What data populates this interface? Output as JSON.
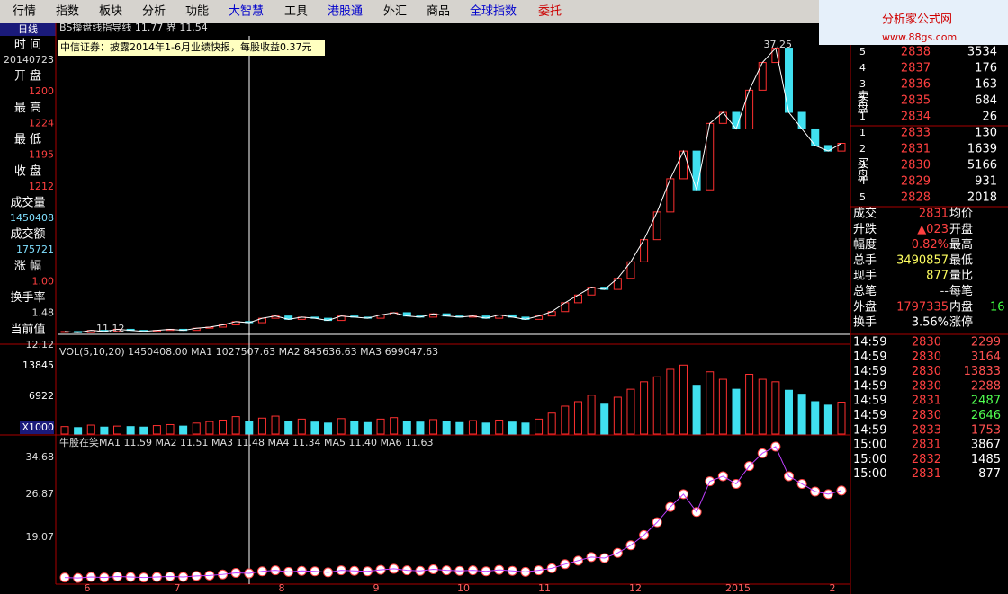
{
  "menu": [
    "行情",
    "指数",
    "板块",
    "分析",
    "功能",
    "大智慧",
    "工具",
    "港股通",
    "外汇",
    "商品",
    "全球指数",
    "委托"
  ],
  "brand": {
    "name": "分析家公式网",
    "url": "www.88gs.com"
  },
  "left": {
    "title": "日线",
    "fields": [
      {
        "label": "时 间",
        "value": "20140723"
      },
      {
        "label": "开 盘",
        "value": "1200"
      },
      {
        "label": "最 高",
        "value": "1224"
      },
      {
        "label": "最 低",
        "value": "1195"
      },
      {
        "label": "收 盘",
        "value": "1212"
      },
      {
        "label": "成交量",
        "value": "1450408"
      },
      {
        "label": "成交额",
        "value": "175721"
      },
      {
        "label": "涨 幅",
        "value": "1.00"
      },
      {
        "label": "换手率",
        "value": "1.48"
      },
      {
        "label": "当前值",
        "value": "12.12"
      }
    ],
    "axis_labels": [
      "13845",
      "6922",
      "X1000",
      "34.68",
      "26.87",
      "19.07"
    ]
  },
  "chart": {
    "header": "BS操盘线指导线 11.77 界 11.54",
    "notice": "中信证券：披露2014年1-6月业绩快报，每股收益0.37元",
    "high_label": "37.25",
    "low_label": "11.12",
    "vol_header": "VOL(5,10,20)  1450408.00  MA1 1027507.63  MA2 845636.63  MA3 699047.63",
    "ind_header": "牛股在笑MA1 11.59  MA2 11.51  MA3 11.48  MA4 11.34  MA5 11.40  MA6 11.63",
    "x_labels": [
      "6",
      "7",
      "8",
      "9",
      "10",
      "11",
      "12",
      "2015",
      "2"
    ],
    "closes": [
      11.2,
      11.1,
      11.3,
      11.2,
      11.4,
      11.3,
      11.2,
      11.3,
      11.4,
      11.3,
      11.5,
      11.6,
      11.8,
      12.1,
      12.0,
      12.4,
      12.6,
      12.3,
      12.5,
      12.4,
      12.2,
      12.6,
      12.5,
      12.4,
      12.7,
      12.9,
      12.6,
      12.5,
      12.8,
      12.6,
      12.5,
      12.6,
      12.4,
      12.7,
      12.5,
      12.3,
      12.6,
      13.0,
      13.8,
      14.5,
      15.2,
      15.0,
      16.0,
      17.5,
      19.5,
      22.0,
      25.0,
      27.5,
      24.0,
      30.0,
      31.0,
      29.5,
      33.0,
      35.5,
      36.8,
      31.0,
      29.5,
      28.0,
      27.5,
      28.2
    ],
    "volumes": [
      1500,
      1300,
      1800,
      1400,
      1600,
      1500,
      1400,
      1700,
      1900,
      1600,
      2200,
      2500,
      2800,
      3500,
      2600,
      3200,
      3600,
      2600,
      3000,
      2400,
      2200,
      3100,
      2500,
      2300,
      3000,
      3300,
      2500,
      2400,
      2900,
      2600,
      2300,
      2700,
      2200,
      2800,
      2400,
      2200,
      3000,
      4200,
      5600,
      6500,
      7800,
      6000,
      7400,
      9000,
      10500,
      11500,
      13000,
      13845,
      9800,
      12500,
      11000,
      9000,
      12000,
      11000,
      10500,
      8800,
      8000,
      6500,
      5800,
      6400
    ],
    "price_ylim": [
      10.3,
      37.9
    ],
    "vol_ylim": [
      0,
      14800
    ],
    "ind_ylim": [
      9.9,
      38.9
    ]
  },
  "quote": {
    "sell_label": "卖盘",
    "buy_label": "买盘",
    "sell": [
      [
        "5",
        "2838",
        "3534"
      ],
      [
        "4",
        "2837",
        "176"
      ],
      [
        "3",
        "2836",
        "163"
      ],
      [
        "2",
        "2835",
        "684"
      ],
      [
        "1",
        "2834",
        "26"
      ]
    ],
    "buy": [
      [
        "1",
        "2833",
        "130"
      ],
      [
        "2",
        "2831",
        "1639"
      ],
      [
        "3",
        "2830",
        "5166"
      ],
      [
        "4",
        "2829",
        "931"
      ],
      [
        "5",
        "2828",
        "2018"
      ]
    ],
    "stats": [
      [
        "成交",
        "2831",
        "均价"
      ],
      [
        "升跌",
        "▲023",
        "开盘"
      ],
      [
        "幅度",
        "0.82%",
        "最高"
      ],
      [
        "总手",
        "3490857",
        "最低"
      ],
      [
        "现手",
        "877",
        "量比"
      ],
      [
        "总笔",
        "--",
        "每笔"
      ],
      [
        "外盘",
        "1797335",
        "内盘"
      ],
      [
        "换手",
        "3.56%",
        "涨停"
      ]
    ],
    "inner_value": "16",
    "ticks": [
      [
        "14:59",
        "2830",
        "2299"
      ],
      [
        "14:59",
        "2830",
        "3164"
      ],
      [
        "14:59",
        "2830",
        "13833"
      ],
      [
        "14:59",
        "2830",
        "2288"
      ],
      [
        "14:59",
        "2831",
        "2487"
      ],
      [
        "14:59",
        "2830",
        "2646"
      ],
      [
        "14:59",
        "2833",
        "1753"
      ],
      [
        "15:00",
        "2831",
        "3867"
      ],
      [
        "15:00",
        "2832",
        "1485"
      ],
      [
        "15:00",
        "2831",
        "877"
      ]
    ],
    "tick_colors": [
      "#ff5050",
      "#ff5050",
      "#ff5050",
      "#ff5050",
      "#50ff50",
      "#50ff50",
      "#ff5050",
      "#ffffff",
      "#ffffff",
      "#ffffff"
    ]
  }
}
